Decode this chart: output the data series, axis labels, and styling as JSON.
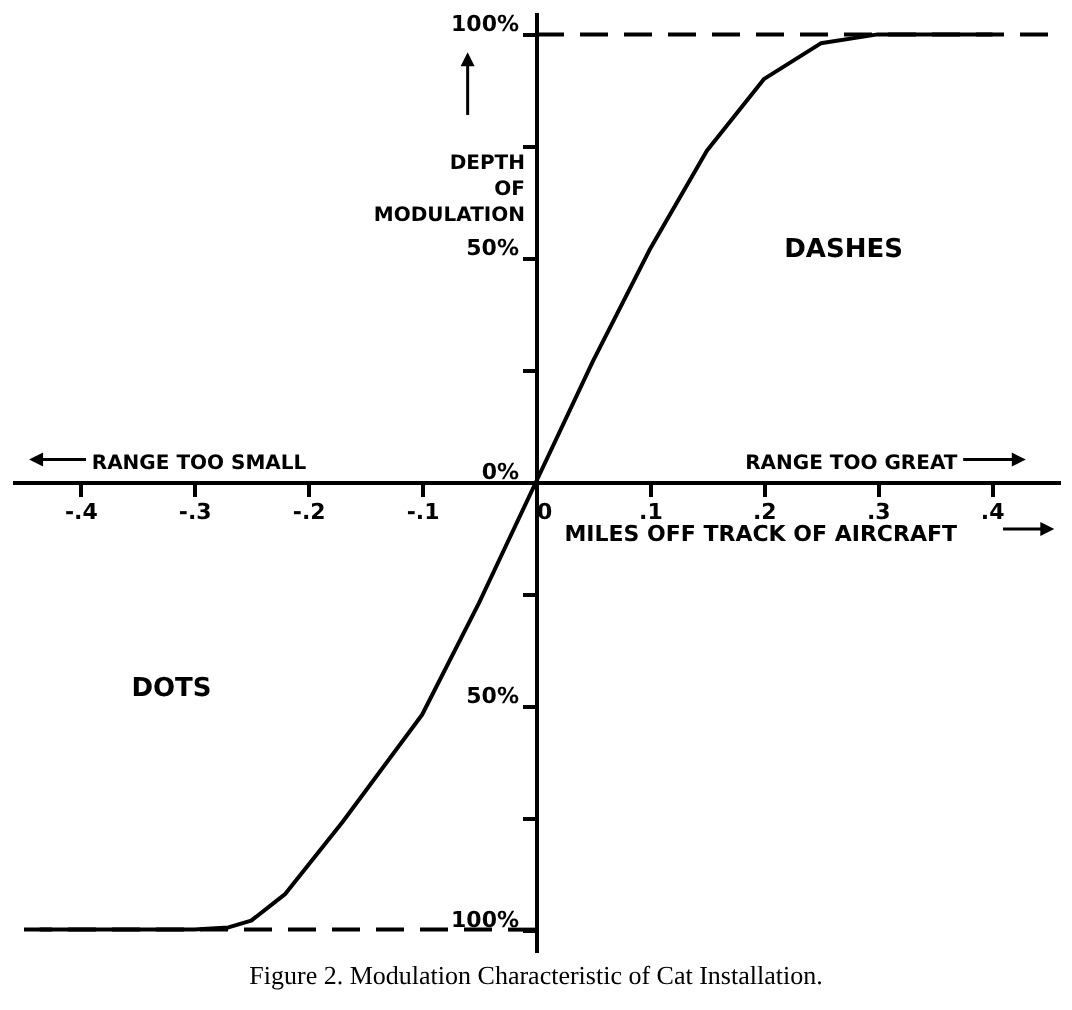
{
  "chart_data": {
    "type": "line",
    "title": "Figure 2. Modulation Characteristic of Cat Installation.",
    "xlabel": "MILES OFF TRACK OF AIRCRAFT",
    "ylabel": "DEPTH OF MODULATION",
    "annotations": [
      "RANGE TOO SMALL",
      "RANGE TOO GREAT",
      "DASHES",
      "DOTS"
    ],
    "series": [
      {
        "color": "#000000",
        "x": [
          -0.435,
          -0.3,
          -0.27,
          -0.25,
          -0.22,
          -0.17,
          -0.1,
          -0.05,
          0,
          0.05,
          0.1,
          0.15,
          0.2,
          0.25,
          0.3,
          0.4
        ],
        "values": [
          -100,
          -100,
          -99.5,
          -98,
          -92,
          -76,
          -52,
          -27,
          0,
          27,
          52,
          74,
          90,
          98,
          100,
          100
        ]
      }
    ],
    "xlim": [
      -0.46,
      0.46
    ],
    "ylim": [
      -105,
      105
    ],
    "xticks": [
      {
        "value": -0.4,
        "label": "-.4"
      },
      {
        "value": -0.3,
        "label": "-.3"
      },
      {
        "value": -0.2,
        "label": "-.2"
      },
      {
        "value": -0.1,
        "label": "-.1"
      },
      {
        "value": 0,
        "label": "0"
      },
      {
        "value": 0.1,
        "label": ".1"
      },
      {
        "value": 0.2,
        "label": ".2"
      },
      {
        "value": 0.3,
        "label": ".3"
      },
      {
        "value": 0.4,
        "label": ".4"
      }
    ],
    "yticks": [
      {
        "value": -100,
        "label": "100%"
      },
      {
        "value": -75,
        "label": null
      },
      {
        "value": -50,
        "label": "50%"
      },
      {
        "value": -25,
        "label": null
      },
      {
        "value": 0,
        "label": "0%"
      },
      {
        "value": 25,
        "label": null
      },
      {
        "value": 50,
        "label": "50%"
      },
      {
        "value": 75,
        "label": null
      },
      {
        "value": 100,
        "label": "100%"
      }
    ],
    "ref_lines": [
      {
        "axis": "y",
        "value": 100,
        "color": "#000000",
        "line_style": "dashed"
      },
      {
        "axis": "y",
        "value": -100,
        "color": "#000000",
        "line_style": "dashed"
      }
    ],
    "line_style": "solid"
  }
}
